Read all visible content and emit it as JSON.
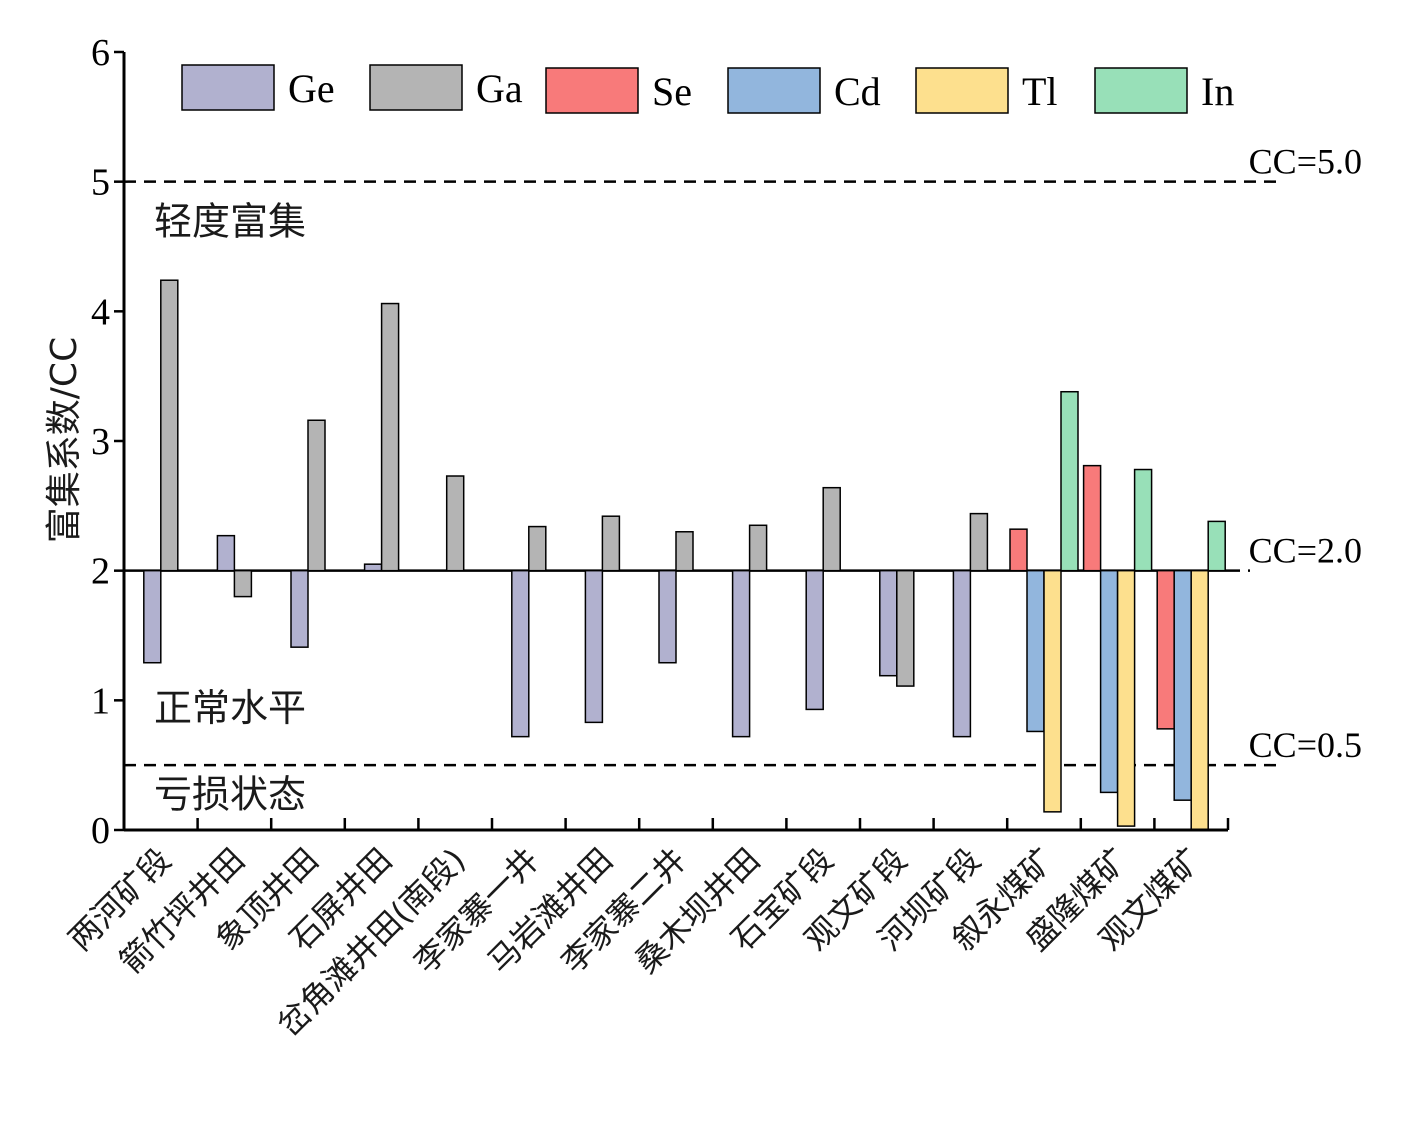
{
  "chart_data": {
    "type": "bar",
    "ylabel": "富集系数/CC",
    "xlabel": "",
    "ylim": [
      0,
      6
    ],
    "yticks": [
      0,
      1,
      2,
      3,
      4,
      5,
      6
    ],
    "baseline": 2,
    "legend_position": "top",
    "categories": [
      "两河矿段",
      "箭竹坪井田",
      "象顶井田",
      "石屏井田",
      "岔角滩井田(南段)",
      "李家寨一井",
      "马岩滩井田",
      "李家寨二井",
      "桑木坝井田",
      "石宝矿段",
      "观文矿段",
      "河坝矿段",
      "叙永煤矿",
      "盛隆煤矿",
      "观文煤矿"
    ],
    "series": [
      {
        "name": "Ge",
        "color": "#b1b1cf",
        "values": [
          1.29,
          2.27,
          1.41,
          2.05,
          null,
          0.72,
          0.83,
          1.29,
          0.72,
          0.93,
          1.19,
          0.72,
          null,
          null,
          null
        ]
      },
      {
        "name": "Ga",
        "color": "#b4b4b4",
        "values": [
          4.24,
          1.8,
          3.16,
          4.06,
          2.73,
          2.34,
          2.42,
          2.3,
          2.35,
          2.64,
          1.11,
          2.44,
          null,
          null,
          null
        ]
      },
      {
        "name": "Se",
        "color": "#f87a7a",
        "values": [
          null,
          null,
          null,
          null,
          null,
          null,
          null,
          null,
          null,
          null,
          null,
          null,
          2.32,
          2.81,
          0.78
        ]
      },
      {
        "name": "Cd",
        "color": "#92b6dd",
        "values": [
          null,
          null,
          null,
          null,
          null,
          null,
          null,
          null,
          null,
          null,
          null,
          null,
          0.76,
          0.29,
          0.23
        ]
      },
      {
        "name": "Tl",
        "color": "#fde08e",
        "values": [
          null,
          null,
          null,
          null,
          null,
          null,
          null,
          null,
          null,
          null,
          null,
          null,
          0.14,
          0.03,
          0.0
        ]
      },
      {
        "name": "In",
        "color": "#98e0b8",
        "values": [
          null,
          null,
          null,
          null,
          null,
          null,
          null,
          null,
          null,
          null,
          null,
          null,
          3.38,
          2.78,
          2.38
        ]
      }
    ],
    "reference_lines": [
      {
        "value": 5.0,
        "label": "CC=5.0",
        "style": "dashed"
      },
      {
        "value": 2.0,
        "label": "CC=2.0",
        "style": "dashed"
      },
      {
        "value": 0.5,
        "label": "CC=0.5",
        "style": "dashed"
      }
    ],
    "zone_labels": [
      {
        "label": "轻度富集",
        "y": 4.7
      },
      {
        "label": "正常水平",
        "y": 0.95
      },
      {
        "label": "亏损状态",
        "y": 0.28
      }
    ]
  }
}
